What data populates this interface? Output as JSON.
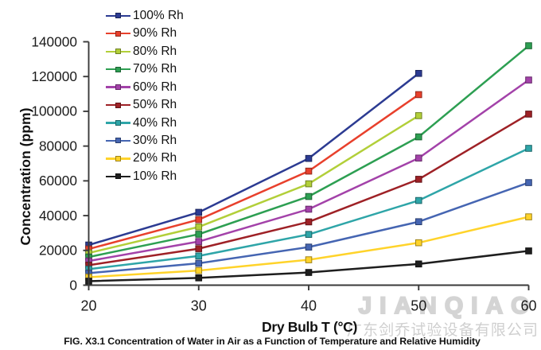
{
  "figure": {
    "caption": "FIG. X3.1 Concentration of Water in Air as a Function of Temperature and Relative Humidity"
  },
  "watermark": {
    "latin": "JIANQIAO",
    "chinese": "广东剑乔试验设备有限公司",
    "color": "#d4d4d4"
  },
  "chart_data": {
    "type": "line",
    "title": "",
    "xlabel": "Dry Bulb T (°C)",
    "ylabel": "Concentration (ppm)",
    "xlim": [
      20,
      60
    ],
    "ylim": [
      0,
      140000
    ],
    "x_ticks": [
      20,
      30,
      40,
      50,
      60
    ],
    "y_ticks": [
      0,
      20000,
      40000,
      60000,
      80000,
      100000,
      120000,
      140000
    ],
    "grid": false,
    "legend_position": "upper-left-vertical",
    "axis_color": "#3a3a3a",
    "series": [
      {
        "name": "100% Rh",
        "color": "#2c3b92",
        "x": [
          20,
          30,
          40,
          50
        ],
        "values": [
          23100,
          41900,
          72900,
          121800
        ]
      },
      {
        "name": "90% Rh",
        "color": "#e8402c",
        "x": [
          20,
          30,
          40,
          50
        ],
        "values": [
          20800,
          37700,
          65600,
          109600
        ]
      },
      {
        "name": "80% Rh",
        "color": "#b2cf39",
        "x": [
          20,
          30,
          40,
          50
        ],
        "values": [
          18500,
          33500,
          58300,
          97500
        ]
      },
      {
        "name": "70% Rh",
        "color": "#2d9f52",
        "x": [
          20,
          30,
          40,
          50,
          60
        ],
        "values": [
          16200,
          29300,
          51000,
          85300,
          137700
        ]
      },
      {
        "name": "60% Rh",
        "color": "#a342a9",
        "x": [
          20,
          30,
          40,
          50,
          60
        ],
        "values": [
          13900,
          25100,
          43700,
          73100,
          118000
        ]
      },
      {
        "name": "50% Rh",
        "color": "#9e2126",
        "x": [
          20,
          30,
          40,
          50,
          60
        ],
        "values": [
          11500,
          21000,
          36400,
          60900,
          98400
        ]
      },
      {
        "name": "40% Rh",
        "color": "#2ea5a8",
        "x": [
          20,
          30,
          40,
          50,
          60
        ],
        "values": [
          9200,
          16800,
          29200,
          48700,
          78700
        ]
      },
      {
        "name": "30% Rh",
        "color": "#4565b2",
        "x": [
          20,
          30,
          40,
          50,
          60
        ],
        "values": [
          6900,
          12600,
          21900,
          36500,
          59000
        ]
      },
      {
        "name": "20% Rh",
        "color": "#ffd32a",
        "x": [
          20,
          30,
          40,
          50,
          60
        ],
        "values": [
          4600,
          8400,
          14600,
          24400,
          39300
        ]
      },
      {
        "name": "10% Rh",
        "color": "#1e1e1e",
        "x": [
          20,
          30,
          40,
          50,
          60
        ],
        "values": [
          2300,
          4200,
          7300,
          12200,
          19700
        ]
      }
    ]
  }
}
